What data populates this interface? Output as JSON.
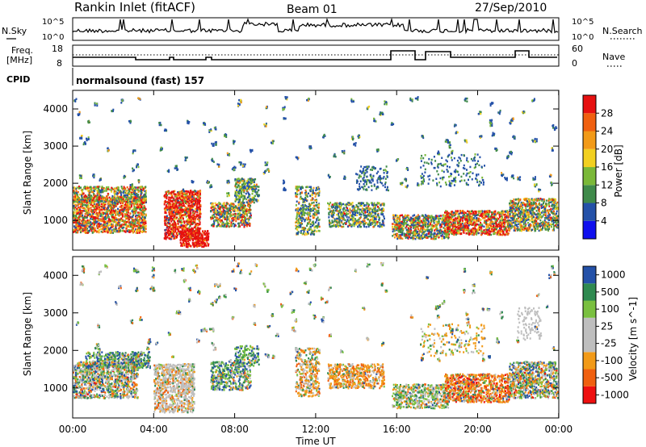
{
  "header": {
    "title": "Rankin Inlet (fitACF)",
    "beam": "Beam 01",
    "date": "27/Sep/2010"
  },
  "top_panel": {
    "left_label": "N.Sky",
    "left_ticks": [
      "10^5",
      "10^0"
    ],
    "right_label": "N.Search",
    "right_ticks": [
      "10^5",
      "10^0"
    ]
  },
  "freq_panel": {
    "left_label_line1": "Freq.",
    "left_label_line2": "[MHz]",
    "left_ticks": [
      "18",
      "8"
    ],
    "right_label": "Nave",
    "right_ticks": [
      "60",
      "0"
    ]
  },
  "cpid": {
    "label": "CPID",
    "program": "normalsound (fast) 157"
  },
  "colors": {
    "power": [
      "#1010ee",
      "#2451a8",
      "#3f8a4a",
      "#7ab838",
      "#f2d020",
      "#f29a18",
      "#f06010",
      "#e61010"
    ],
    "velocity": [
      "#ee1010",
      "#f06010",
      "#f29a18",
      "#bebebe",
      "#bebebe",
      "#7ac040",
      "#2f8a50",
      "#2451a8"
    ]
  },
  "chart_data": [
    {
      "type": "heatmap",
      "ylabel": "Slant Range [km]",
      "y_ticks": [
        "1000",
        "2000",
        "3000",
        "4000"
      ],
      "ylim": [
        200,
        4500
      ],
      "colorbar_label": "Power [dB]",
      "colorbar_ticks": [
        "4",
        "8",
        "12",
        "16",
        "20",
        "24",
        "28"
      ]
    },
    {
      "type": "heatmap",
      "xlabel": "Time UT",
      "x_ticks": [
        "00:00",
        "04:00",
        "08:00",
        "12:00",
        "16:00",
        "20:00",
        "00:00"
      ],
      "ylabel": "Slant Range [km]",
      "y_ticks": [
        "1000",
        "2000",
        "3000",
        "4000"
      ],
      "ylim": [
        200,
        4500
      ],
      "colorbar_label": "Velocity [m s^-1]",
      "colorbar_ticks": [
        "1000",
        "500",
        "100",
        "25",
        "-25",
        "-100",
        "-500",
        "-1000"
      ]
    }
  ]
}
